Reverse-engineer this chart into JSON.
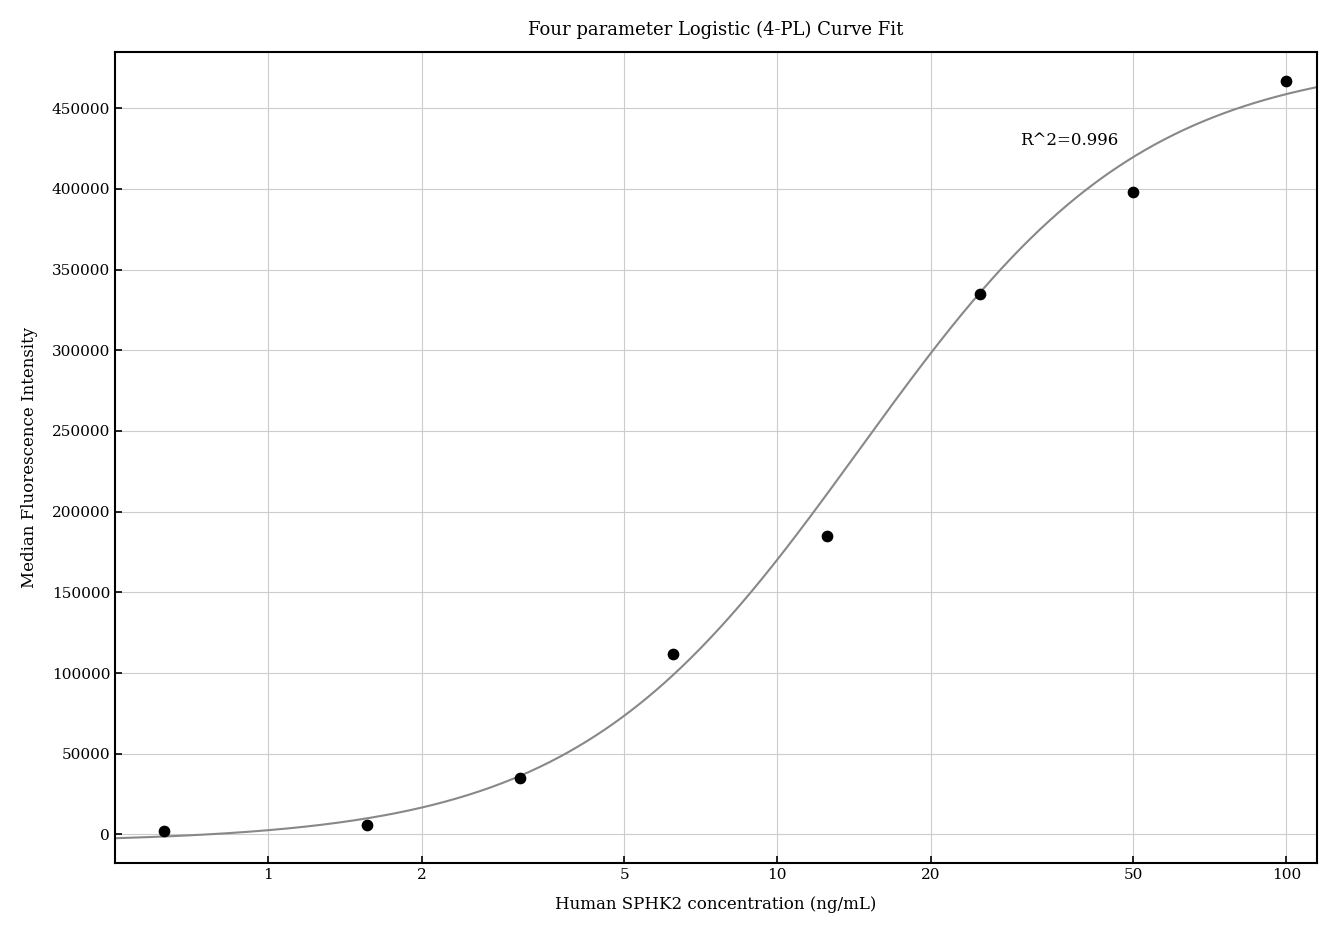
{
  "title": "Four parameter Logistic (4-PL) Curve Fit",
  "xlabel": "Human SPHK2 concentration (ng/mL)",
  "ylabel": "Median Fluorescence Intensity",
  "r_squared_text": "R^2=0.996",
  "r_squared_pos_x": 30,
  "r_squared_pos_y": 435000,
  "data_x": [
    0.625,
    1.5625,
    3.125,
    6.25,
    12.5,
    25.0,
    50.0,
    100.0
  ],
  "data_y": [
    2000,
    6000,
    35000,
    112000,
    185000,
    335000,
    398000,
    467000
  ],
  "xmin": 0.5,
  "xmax": 115,
  "ymin": -18000,
  "ymax": 485000,
  "xticks": [
    1,
    2,
    5,
    10,
    20,
    50,
    100
  ],
  "yticks": [
    0,
    50000,
    100000,
    150000,
    200000,
    250000,
    300000,
    350000,
    400000,
    450000
  ],
  "curve_color": "#888888",
  "dot_color": "#000000",
  "background_color": "#ffffff",
  "grid_color": "#cccccc",
  "title_fontsize": 13,
  "label_fontsize": 12,
  "tick_fontsize": 11,
  "4pl_A": -5000,
  "4pl_B": 1.55,
  "4pl_C": 14.5,
  "4pl_D": 482000
}
